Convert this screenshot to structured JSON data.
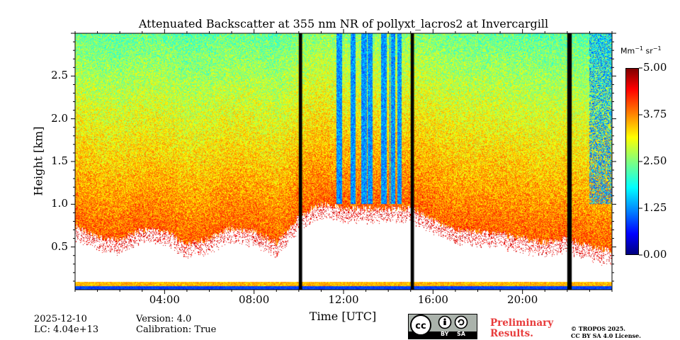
{
  "chart_data": {
    "type": "heatmap",
    "title": "Attenuated Backscatter at 355 nm NR of pollyxt_lacros2 at Invercargill",
    "xlabel": "Time [UTC]",
    "ylabel": "Height [km]",
    "x_ticks": [
      "04:00",
      "08:00",
      "12:00",
      "16:00",
      "20:00"
    ],
    "x_tick_hours": [
      4,
      8,
      12,
      16,
      20
    ],
    "xlim_hours": [
      0,
      24
    ],
    "y_ticks": [
      "0.5",
      "1.0",
      "1.5",
      "2.0",
      "2.5"
    ],
    "y_tick_values": [
      0.5,
      1.0,
      1.5,
      2.0,
      2.5
    ],
    "ylim_km": [
      0,
      3.0
    ],
    "colorbar": {
      "unit_base": "Mm",
      "unit_exp1": "−1",
      "unit_mid": " sr",
      "unit_exp2": "−1",
      "ticks": [
        "0.00",
        "1.25",
        "2.50",
        "3.75",
        "5.00"
      ],
      "tick_values": [
        0,
        1.25,
        2.5,
        3.75,
        5.0
      ],
      "range": [
        0,
        5.0
      ],
      "colormap": "jet"
    },
    "data_gaps_hours": [
      {
        "start": 10.0,
        "end": 10.15
      },
      {
        "start": 15.0,
        "end": 15.15
      },
      {
        "start": 22.0,
        "end": 22.2
      }
    ],
    "cloud_streaks_hours": [
      11.8,
      12.4,
      12.9,
      13.2,
      13.8,
      14.2,
      14.5
    ],
    "low_layer_top_km": [
      0.75,
      0.62,
      0.58,
      0.7,
      0.68,
      0.52,
      0.6,
      0.72,
      0.68,
      0.55,
      0.85,
      1.0,
      0.95,
      0.95,
      0.95,
      0.95,
      0.82,
      0.7,
      0.68,
      0.65,
      0.6,
      0.55,
      0.6,
      0.5,
      0.45
    ]
  },
  "footer": {
    "date": "2025-12-10",
    "lc": "LC: 4.04e+13",
    "version": "Version: 4.0",
    "calibration": "Calibration: True",
    "cc_by": "BY",
    "cc_sa": "SA",
    "preliminary_line1": "Preliminary",
    "preliminary_line2": "Results.",
    "copyright_line1": "© TROPOS 2025.",
    "copyright_line2": "CC BY SA 4.0 License."
  }
}
